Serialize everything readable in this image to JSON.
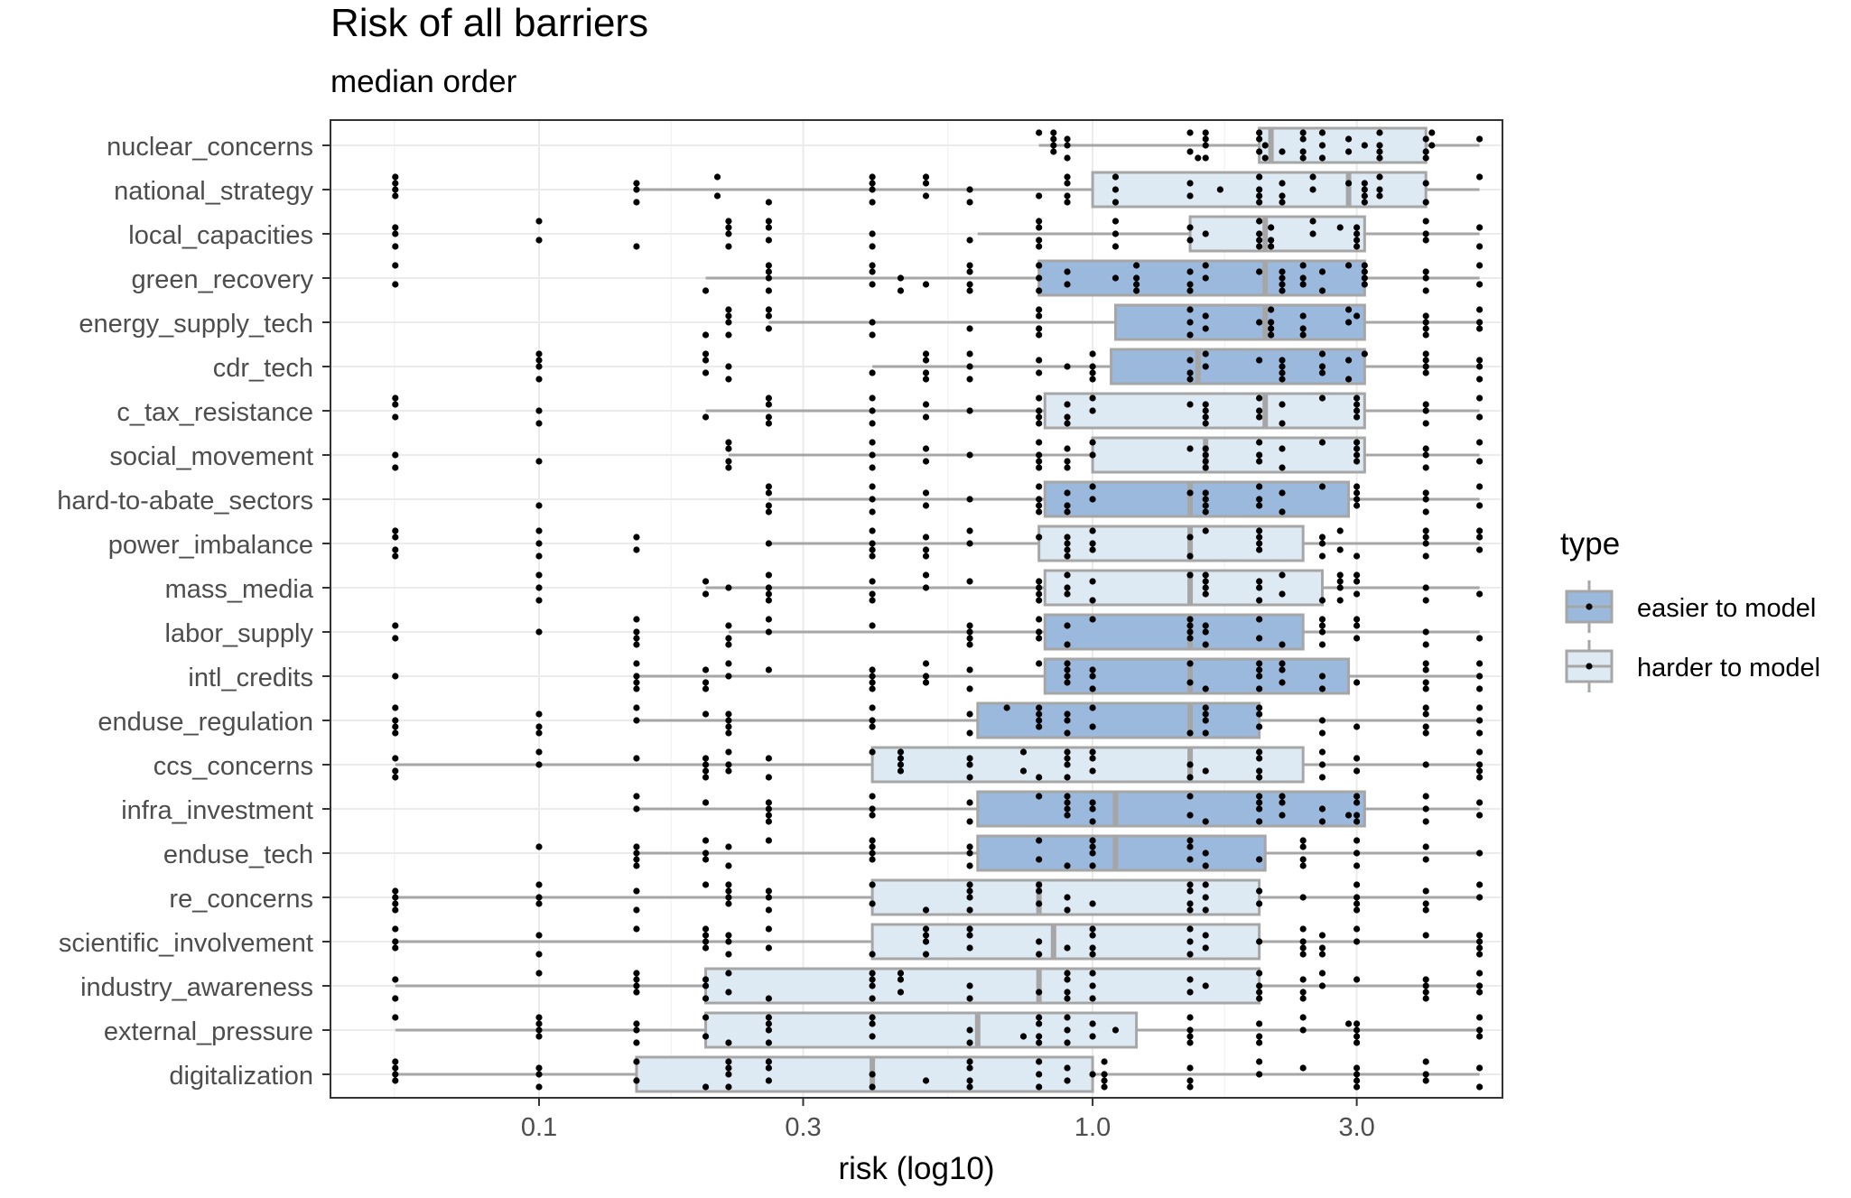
{
  "chart_data": {
    "type": "boxplot",
    "title": "Risk of all barriers",
    "subtitle": "median order",
    "xlabel": "risk (log10)",
    "ylabel": "",
    "x_scale": "log10",
    "xlim": [
      0.042,
      5.5
    ],
    "x_ticks": [
      {
        "value": 0.1,
        "label": "0.1"
      },
      {
        "value": 0.3,
        "label": "0.3"
      },
      {
        "value": 1.0,
        "label": "1.0"
      },
      {
        "value": 3.0,
        "label": "3.0"
      }
    ],
    "grid": true,
    "legend": {
      "title": "type",
      "position": "right",
      "entries": [
        {
          "key": "easier",
          "label": "easier to model",
          "color": "#9bb9dc"
        },
        {
          "key": "harder",
          "label": "harder to model",
          "color": "#dde9f3"
        }
      ]
    },
    "colors": {
      "box_border": "#a6a6a6",
      "whisker": "#a6a6a6",
      "median": "#a6a6a6",
      "point": "#000000",
      "grid_major": "#ebebeb",
      "grid_minor": "#f4f4f4",
      "panel_border": "#333333"
    },
    "barriers": [
      {
        "name": "nuclear_concerns",
        "type": "harder",
        "whisker_low": 0.8,
        "q1": 2.0,
        "median": 2.1,
        "q3": 4.0,
        "whisker_high": 5.0,
        "points": [
          0.8,
          0.85,
          0.9,
          1.5,
          1.55,
          1.6,
          2.0,
          2.05,
          2.2,
          2.4,
          2.6,
          2.9,
          3.1,
          3.3,
          4.0,
          4.1,
          5.0
        ]
      },
      {
        "name": "national_strategy",
        "type": "harder",
        "whisker_low": 0.15,
        "q1": 1.0,
        "median": 2.9,
        "q3": 4.0,
        "whisker_high": 5.0,
        "points": [
          0.055,
          0.15,
          0.21,
          0.26,
          0.4,
          0.5,
          0.6,
          0.8,
          0.9,
          1.1,
          1.5,
          1.7,
          2.0,
          2.2,
          2.5,
          2.9,
          3.1,
          3.3,
          4.0,
          5.0
        ]
      },
      {
        "name": "local_capacities",
        "type": "harder",
        "whisker_low": 0.62,
        "q1": 1.5,
        "median": 2.05,
        "q3": 3.1,
        "whisker_high": 5.0,
        "points": [
          0.055,
          0.1,
          0.15,
          0.22,
          0.26,
          0.4,
          0.6,
          0.8,
          1.1,
          1.5,
          1.6,
          2.0,
          2.1,
          2.5,
          2.8,
          3.0,
          4.0,
          5.0
        ]
      },
      {
        "name": "green_recovery",
        "type": "easier",
        "whisker_low": 0.2,
        "q1": 0.8,
        "median": 2.05,
        "q3": 3.1,
        "whisker_high": 5.0,
        "points": [
          0.055,
          0.2,
          0.26,
          0.4,
          0.45,
          0.5,
          0.6,
          0.8,
          0.9,
          1.1,
          1.2,
          1.5,
          1.6,
          2.0,
          2.2,
          2.4,
          2.6,
          2.9,
          3.1,
          4.0,
          5.0
        ]
      },
      {
        "name": "energy_supply_tech",
        "type": "easier",
        "whisker_low": 0.26,
        "q1": 1.1,
        "median": 2.05,
        "q3": 3.1,
        "whisker_high": 5.0,
        "points": [
          0.2,
          0.22,
          0.26,
          0.4,
          0.6,
          0.8,
          1.5,
          1.6,
          2.0,
          2.1,
          2.4,
          2.9,
          3.0,
          4.0,
          5.0
        ]
      },
      {
        "name": "cdr_tech",
        "type": "easier",
        "whisker_low": 0.4,
        "q1": 1.08,
        "median": 1.55,
        "q3": 3.1,
        "whisker_high": 5.0,
        "points": [
          0.1,
          0.2,
          0.22,
          0.4,
          0.5,
          0.6,
          0.8,
          0.9,
          1.0,
          1.5,
          1.6,
          2.0,
          2.2,
          2.6,
          2.9,
          3.1,
          4.0,
          5.0
        ]
      },
      {
        "name": "c_tax_resistance",
        "type": "harder",
        "whisker_low": 0.2,
        "q1": 0.82,
        "median": 2.05,
        "q3": 3.1,
        "whisker_high": 5.0,
        "points": [
          0.055,
          0.1,
          0.2,
          0.26,
          0.4,
          0.5,
          0.6,
          0.8,
          0.9,
          1.0,
          1.5,
          1.6,
          2.0,
          2.2,
          2.6,
          3.0,
          4.0,
          5.0
        ]
      },
      {
        "name": "social_movement",
        "type": "harder",
        "whisker_low": 0.22,
        "q1": 1.0,
        "median": 1.6,
        "q3": 3.1,
        "whisker_high": 5.0,
        "points": [
          0.055,
          0.1,
          0.22,
          0.4,
          0.5,
          0.6,
          0.8,
          0.9,
          1.0,
          1.5,
          1.6,
          2.0,
          2.2,
          2.6,
          3.0,
          4.0,
          5.0
        ]
      },
      {
        "name": "hard-to-abate_sectors",
        "type": "easier",
        "whisker_low": 0.26,
        "q1": 0.82,
        "median": 1.5,
        "q3": 2.9,
        "whisker_high": 5.0,
        "points": [
          0.1,
          0.26,
          0.4,
          0.5,
          0.6,
          0.8,
          0.9,
          1.0,
          1.5,
          1.6,
          2.0,
          2.2,
          2.6,
          3.0,
          4.0,
          5.0
        ]
      },
      {
        "name": "power_imbalance",
        "type": "harder",
        "whisker_low": 0.26,
        "q1": 0.8,
        "median": 1.5,
        "q3": 2.4,
        "whisker_high": 5.0,
        "points": [
          0.055,
          0.1,
          0.15,
          0.26,
          0.4,
          0.5,
          0.6,
          0.8,
          0.9,
          1.0,
          1.5,
          1.6,
          2.0,
          2.6,
          2.8,
          3.0,
          4.0,
          5.0
        ]
      },
      {
        "name": "mass_media",
        "type": "harder",
        "whisker_low": 0.2,
        "q1": 0.82,
        "median": 1.5,
        "q3": 2.6,
        "whisker_high": 5.0,
        "points": [
          0.1,
          0.2,
          0.22,
          0.26,
          0.4,
          0.5,
          0.6,
          0.8,
          0.9,
          1.0,
          1.5,
          1.6,
          2.0,
          2.2,
          2.6,
          2.8,
          3.0,
          4.0,
          5.0
        ]
      },
      {
        "name": "labor_supply",
        "type": "easier",
        "whisker_low": 0.22,
        "q1": 0.82,
        "median": 1.5,
        "q3": 2.4,
        "whisker_high": 5.0,
        "points": [
          0.055,
          0.1,
          0.15,
          0.22,
          0.26,
          0.4,
          0.6,
          0.8,
          0.9,
          1.0,
          1.5,
          1.6,
          2.0,
          2.2,
          2.6,
          3.0,
          4.0,
          5.0
        ]
      },
      {
        "name": "intl_credits",
        "type": "easier",
        "whisker_low": 0.15,
        "q1": 0.82,
        "median": 1.5,
        "q3": 2.9,
        "whisker_high": 5.0,
        "points": [
          0.055,
          0.15,
          0.2,
          0.22,
          0.26,
          0.4,
          0.5,
          0.6,
          0.8,
          0.9,
          1.0,
          1.5,
          1.6,
          2.0,
          2.2,
          2.6,
          3.0,
          4.0,
          5.0
        ]
      },
      {
        "name": "enduse_regulation",
        "type": "easier",
        "whisker_low": 0.15,
        "q1": 0.62,
        "median": 1.5,
        "q3": 2.0,
        "whisker_high": 5.0,
        "points": [
          0.055,
          0.1,
          0.15,
          0.2,
          0.22,
          0.4,
          0.6,
          0.7,
          0.8,
          0.9,
          1.0,
          1.5,
          1.6,
          2.0,
          2.6,
          3.0,
          4.0,
          5.0
        ]
      },
      {
        "name": "ccs_concerns",
        "type": "harder",
        "whisker_low": 0.055,
        "q1": 0.4,
        "median": 1.5,
        "q3": 2.4,
        "whisker_high": 5.0,
        "points": [
          0.055,
          0.1,
          0.15,
          0.2,
          0.22,
          0.26,
          0.4,
          0.45,
          0.6,
          0.75,
          0.8,
          0.9,
          1.0,
          1.5,
          1.6,
          2.0,
          2.6,
          3.0,
          4.0,
          5.0
        ]
      },
      {
        "name": "infra_investment",
        "type": "easier",
        "whisker_low": 0.15,
        "q1": 0.62,
        "median": 1.1,
        "q3": 3.1,
        "whisker_high": 5.0,
        "points": [
          0.15,
          0.2,
          0.26,
          0.4,
          0.6,
          0.8,
          0.9,
          1.0,
          1.5,
          1.6,
          2.0,
          2.2,
          2.6,
          2.9,
          3.0,
          4.0,
          5.0
        ]
      },
      {
        "name": "enduse_tech",
        "type": "easier",
        "whisker_low": 0.15,
        "q1": 0.62,
        "median": 1.1,
        "q3": 2.05,
        "whisker_high": 5.0,
        "points": [
          0.1,
          0.15,
          0.2,
          0.22,
          0.26,
          0.4,
          0.6,
          0.8,
          0.9,
          1.0,
          1.5,
          1.6,
          2.0,
          2.4,
          3.0,
          4.0,
          5.0
        ]
      },
      {
        "name": "re_concerns",
        "type": "harder",
        "whisker_low": 0.055,
        "q1": 0.4,
        "median": 0.8,
        "q3": 2.0,
        "whisker_high": 5.0,
        "points": [
          0.055,
          0.1,
          0.15,
          0.2,
          0.22,
          0.26,
          0.4,
          0.5,
          0.6,
          0.8,
          0.9,
          1.0,
          1.5,
          1.6,
          2.0,
          2.4,
          3.0,
          4.0,
          5.0
        ]
      },
      {
        "name": "scientific_involvement",
        "type": "harder",
        "whisker_low": 0.055,
        "q1": 0.4,
        "median": 0.85,
        "q3": 2.0,
        "whisker_high": 5.0,
        "points": [
          0.055,
          0.1,
          0.15,
          0.2,
          0.22,
          0.26,
          0.4,
          0.5,
          0.6,
          0.8,
          0.9,
          1.0,
          1.5,
          1.6,
          2.0,
          2.4,
          2.6,
          3.0,
          4.0,
          5.0
        ]
      },
      {
        "name": "industry_awareness",
        "type": "harder",
        "whisker_low": 0.055,
        "q1": 0.2,
        "median": 0.8,
        "q3": 2.0,
        "whisker_high": 5.0,
        "points": [
          0.055,
          0.1,
          0.15,
          0.2,
          0.22,
          0.26,
          0.4,
          0.45,
          0.6,
          0.8,
          0.9,
          1.0,
          1.5,
          1.6,
          2.0,
          2.4,
          2.6,
          3.0,
          4.0,
          5.0
        ]
      },
      {
        "name": "external_pressure",
        "type": "harder",
        "whisker_low": 0.055,
        "q1": 0.2,
        "median": 0.62,
        "q3": 1.2,
        "whisker_high": 5.0,
        "points": [
          0.055,
          0.1,
          0.15,
          0.2,
          0.22,
          0.26,
          0.4,
          0.6,
          0.75,
          0.8,
          0.9,
          1.0,
          1.1,
          1.5,
          2.0,
          2.4,
          2.9,
          3.0,
          5.0
        ]
      },
      {
        "name": "digitalization",
        "type": "harder",
        "whisker_low": 0.055,
        "q1": 0.15,
        "median": 0.4,
        "q3": 1.0,
        "whisker_high": 5.0,
        "points": [
          0.055,
          0.1,
          0.15,
          0.2,
          0.22,
          0.26,
          0.4,
          0.5,
          0.6,
          0.8,
          0.9,
          1.0,
          1.05,
          1.5,
          2.0,
          2.4,
          3.0,
          4.0,
          5.0
        ]
      }
    ]
  }
}
